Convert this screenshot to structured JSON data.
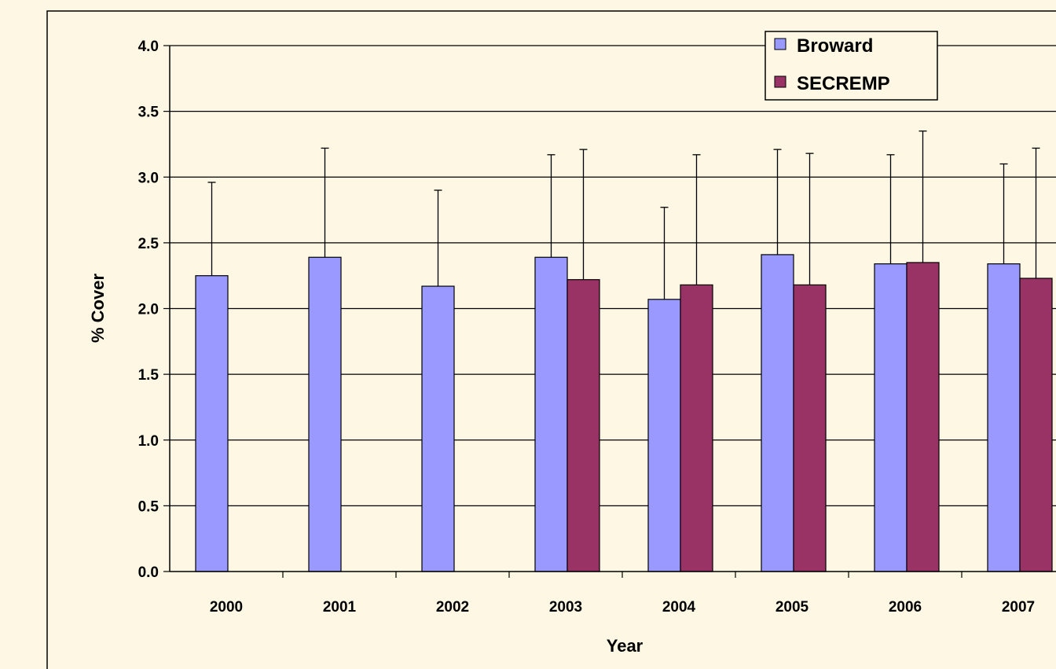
{
  "chart_data": {
    "type": "bar",
    "xlabel": "Year",
    "ylabel": "% Cover",
    "ylim": [
      0,
      4.0
    ],
    "y_ticks": [
      "0.0",
      "0.5",
      "1.0",
      "1.5",
      "2.0",
      "2.5",
      "3.0",
      "3.5",
      "4.0"
    ],
    "categories": [
      "2000",
      "2001",
      "2002",
      "2003",
      "2004",
      "2005",
      "2006",
      "2007"
    ],
    "series": [
      {
        "name": "Broward",
        "color": "#9999FF",
        "values": [
          2.25,
          2.39,
          2.17,
          2.39,
          2.07,
          2.41,
          2.34,
          2.34
        ],
        "error_upper": [
          2.96,
          3.22,
          2.9,
          3.17,
          2.77,
          3.21,
          3.17,
          3.1
        ]
      },
      {
        "name": "SECREMP",
        "color": "#993366",
        "values": [
          null,
          null,
          null,
          2.22,
          2.18,
          2.18,
          2.35,
          2.23
        ],
        "error_upper": [
          null,
          null,
          null,
          3.21,
          3.17,
          3.18,
          3.35,
          3.22
        ]
      }
    ],
    "grid": true,
    "legend_position": "top-right"
  }
}
